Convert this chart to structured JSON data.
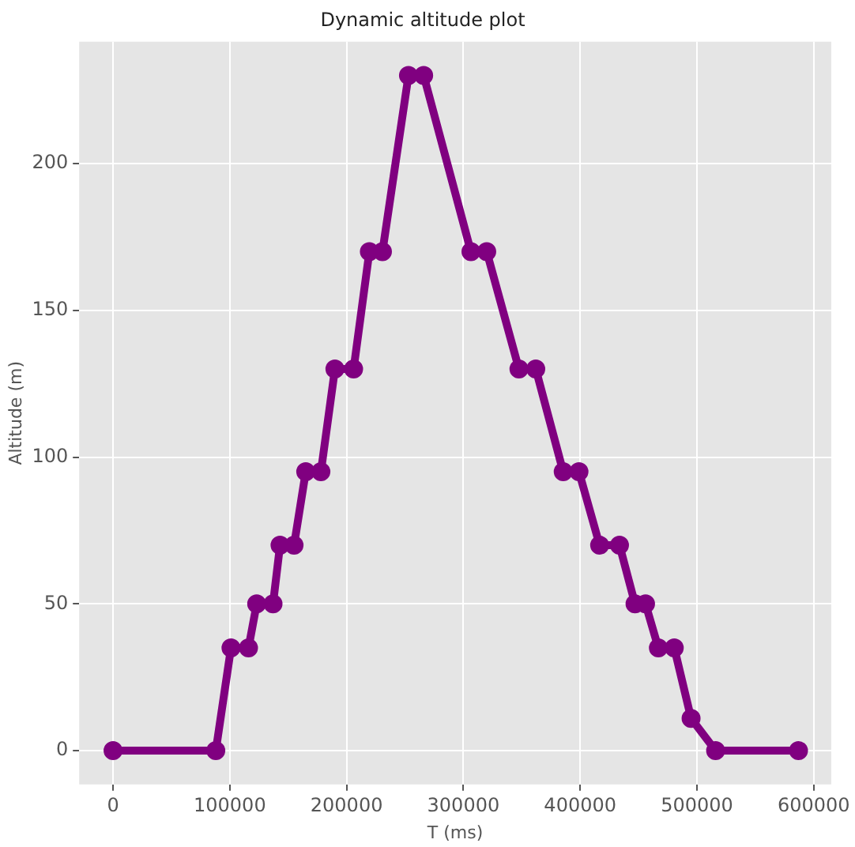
{
  "chart_data": {
    "type": "line",
    "title": "Dynamic altitude plot",
    "xlabel": "T (ms)",
    "ylabel": "Altitude (m)",
    "series": [
      {
        "color": "#800080",
        "x": [
          0,
          88000,
          101000,
          116000,
          123000,
          137000,
          143000,
          155000,
          165000,
          178000,
          190000,
          206000,
          219500,
          230700,
          253000,
          266000,
          306500,
          320000,
          347600,
          362000,
          385500,
          399000,
          416700,
          433700,
          447000,
          456000,
          467000,
          480600,
          495000,
          516000,
          587000
        ],
        "values": [
          0,
          0,
          35,
          35,
          50,
          50,
          70,
          70,
          95,
          95,
          130,
          130,
          170,
          170,
          230,
          230,
          170,
          170,
          130,
          130,
          95,
          95,
          70,
          70,
          50,
          50,
          35,
          35,
          11,
          0,
          0
        ]
      }
    ],
    "xlim": [
      -29000,
      615000
    ],
    "xticks": [
      0,
      100000,
      200000,
      300000,
      400000,
      500000,
      600000
    ],
    "ylim": [
      -11.5,
      241.5
    ],
    "yticks": [
      0,
      50,
      100,
      150,
      200
    ],
    "grid": true,
    "marker": "circle",
    "line_style": "solid"
  }
}
